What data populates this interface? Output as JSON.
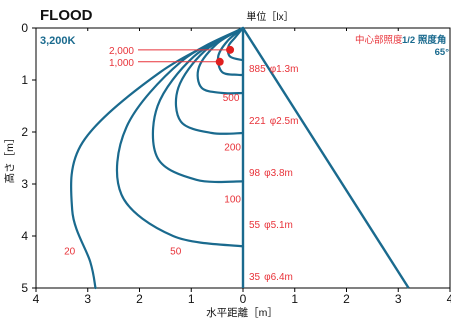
{
  "chart_data": {
    "type": "line",
    "title": "FLOOD",
    "color_temperature": "3,200K",
    "unit_label": "単位［lx］",
    "xlabel": "水平距離［m］",
    "ylabel": "高さ［m］",
    "legend_center": "中心部照度",
    "legend_half": "1/2 照度角",
    "half_angle": "65°",
    "xlim": [
      -4,
      4
    ],
    "ylim": [
      0,
      5
    ],
    "y_inverted": true,
    "x_tick_labels": [
      "4",
      "3",
      "2",
      "1",
      "0",
      "1",
      "2",
      "3",
      "4"
    ],
    "y_tick_labels": [
      "0",
      "1",
      "2",
      "3",
      "4",
      "5"
    ],
    "colors": {
      "curve": "#1a6a8e",
      "accent": "#e8333a",
      "marker": "#e02020"
    },
    "center_illuminance": [
      {
        "height": 1,
        "lux": "885",
        "diameter": "φ1.3m"
      },
      {
        "height": 2,
        "lux": "221",
        "diameter": "φ2.5m"
      },
      {
        "height": 3,
        "lux": "98",
        "diameter": "φ3.8m"
      },
      {
        "height": 4,
        "lux": "55",
        "diameter": "φ5.1m"
      },
      {
        "height": 5,
        "lux": "35",
        "diameter": "φ6.4m"
      }
    ],
    "isolux_curves": [
      {
        "label": "2,000",
        "label_pos": "left-of-marker",
        "marker": [
          -0.25,
          0.42
        ],
        "points": [
          [
            0,
            0
          ],
          [
            -0.15,
            0.18
          ],
          [
            -0.28,
            0.35
          ],
          [
            -0.25,
            0.55
          ],
          [
            0,
            0.62
          ]
        ]
      },
      {
        "label": "1,000",
        "label_pos": "left-of-marker",
        "marker": [
          -0.45,
          0.65
        ],
        "points": [
          [
            0,
            0
          ],
          [
            -0.3,
            0.25
          ],
          [
            -0.48,
            0.55
          ],
          [
            -0.4,
            0.85
          ],
          [
            -0.1,
            0.9
          ],
          [
            0,
            0.9
          ]
        ]
      },
      {
        "label": "500",
        "label_pos": [
          -0.23,
          1.35
        ],
        "points": [
          [
            0,
            0
          ],
          [
            -0.5,
            0.3
          ],
          [
            -0.85,
            0.75
          ],
          [
            -0.8,
            1.15
          ],
          [
            -0.4,
            1.25
          ],
          [
            0,
            1.25
          ]
        ]
      },
      {
        "label": "200",
        "label_pos": [
          -0.2,
          2.3
        ],
        "points": [
          [
            0,
            0
          ],
          [
            -0.75,
            0.45
          ],
          [
            -1.25,
            1.15
          ],
          [
            -1.2,
            1.8
          ],
          [
            -0.6,
            2.02
          ],
          [
            0,
            2.02
          ]
        ]
      },
      {
        "label": "100",
        "label_pos": [
          -0.2,
          3.3
        ],
        "points": [
          [
            0,
            0
          ],
          [
            -0.95,
            0.55
          ],
          [
            -1.65,
            1.5
          ],
          [
            -1.65,
            2.5
          ],
          [
            -0.9,
            2.92
          ],
          [
            0,
            2.95
          ]
        ]
      },
      {
        "label": "50",
        "label_pos": [
          -1.3,
          4.3
        ],
        "points": [
          [
            0,
            0
          ],
          [
            -1.2,
            0.65
          ],
          [
            -2.25,
            1.9
          ],
          [
            -2.35,
            3.2
          ],
          [
            -1.35,
            4.0
          ],
          [
            0,
            4.2
          ]
        ]
      },
      {
        "label": "20",
        "label_pos": [
          -3.35,
          4.3
        ],
        "points": [
          [
            0,
            0
          ],
          [
            -1.6,
            0.85
          ],
          [
            -3.1,
            2.2
          ],
          [
            -3.3,
            3.5
          ],
          [
            -2.95,
            4.5
          ],
          [
            -2.85,
            5.0
          ]
        ]
      }
    ],
    "half_angle_line": [
      [
        0,
        0
      ],
      [
        3.2,
        5.0
      ]
    ],
    "center_line": [
      [
        0,
        0
      ],
      [
        0,
        5.0
      ]
    ]
  }
}
